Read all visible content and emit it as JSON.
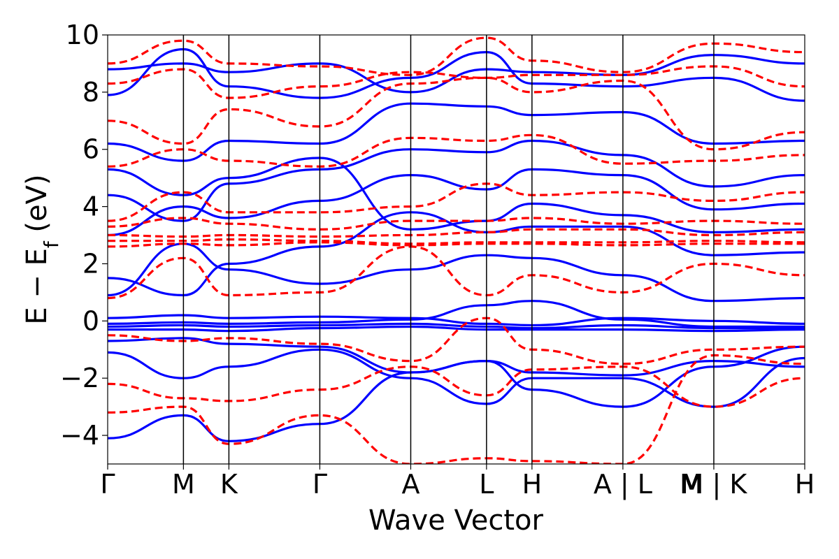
{
  "chart_data": {
    "type": "line",
    "xlabel": "Wave Vector",
    "ylabel": "E − E",
    "ylabel_sub": "f",
    "ylabel_unit": " (eV)",
    "ylim": [
      -5,
      10
    ],
    "yticks": [
      -4,
      -2,
      0,
      2,
      4,
      6,
      8,
      10
    ],
    "ytick_labels": [
      "−4",
      "−2",
      "0",
      "2",
      "4",
      "6",
      "8",
      "10"
    ],
    "kpath": [
      {
        "label": "Γ",
        "x": 0.0
      },
      {
        "label": "M",
        "x": 1.0
      },
      {
        "label": "K",
        "x": 1.6
      },
      {
        "label": "Γ",
        "x": 2.8
      },
      {
        "label": "A",
        "x": 4.0
      },
      {
        "label": "L",
        "x": 5.0
      },
      {
        "label": "H",
        "x": 5.6
      },
      {
        "label": "A | L",
        "x": 6.8
      },
      {
        "label": "M | K",
        "x": 8.0
      },
      {
        "label": "H",
        "x": 9.2
      }
    ],
    "extra_vlines": [],
    "label_M_between": {
      "label": "M",
      "x": 7.7
    },
    "xlim": [
      0,
      9.2
    ],
    "grid": false,
    "series": [
      {
        "style": "solid",
        "color": "#0000ff",
        "bands": [
          {
            "x": [
              0,
              1,
              1.6,
              2.8,
              4,
              5,
              5.6,
              6.8,
              8,
              9.2
            ],
            "y": [
              -0.1,
              -0.05,
              -0.1,
              -0.05,
              0.05,
              0.55,
              0.7,
              0.05,
              -0.2,
              -0.2
            ]
          },
          {
            "x": [
              0,
              1,
              1.6,
              2.8,
              4,
              5,
              5.6,
              6.8,
              8,
              9.2
            ],
            "y": [
              -0.2,
              -0.15,
              -0.2,
              -0.15,
              -0.1,
              -0.2,
              -0.25,
              -0.15,
              -0.25,
              -0.25
            ]
          },
          {
            "x": [
              0,
              1,
              1.6,
              2.8,
              4,
              5,
              5.6,
              6.8,
              8,
              9.2
            ],
            "y": [
              -0.3,
              -0.3,
              -0.35,
              -0.25,
              -0.2,
              -0.3,
              -0.3,
              -0.3,
              -0.35,
              -0.3
            ]
          },
          {
            "x": [
              0,
              1,
              1.6,
              2.8,
              4,
              5,
              5.6,
              6.8,
              8,
              9.2
            ],
            "y": [
              0.1,
              0.2,
              0.1,
              0.15,
              0.1,
              -0.1,
              -0.15,
              0.1,
              0.0,
              -0.1
            ]
          },
          {
            "x": [
              0,
              1,
              1.6,
              2.8,
              4,
              5,
              5.6,
              6.8,
              8,
              9.2
            ],
            "y": [
              -0.7,
              -0.6,
              -0.8,
              -0.9,
              -1.8,
              -1.4,
              -1.8,
              -1.9,
              -1.4,
              -1.6
            ]
          },
          {
            "x": [
              0,
              1,
              1.6,
              2.8,
              4,
              5,
              5.6,
              6.8,
              8,
              9.2
            ],
            "y": [
              -1.1,
              -2.0,
              -1.6,
              -1.0,
              -2.0,
              -2.9,
              -2.0,
              -2.0,
              -3.0,
              -1.3
            ]
          },
          {
            "x": [
              0,
              1,
              1.6,
              2.8,
              4,
              5,
              5.6,
              6.8,
              8,
              9.2
            ],
            "y": [
              -4.1,
              -3.3,
              -4.2,
              -3.6,
              -1.8,
              -1.4,
              -2.4,
              -3.0,
              -1.6,
              -0.9
            ]
          },
          {
            "x": [
              0,
              1,
              1.6,
              2.8,
              4,
              5,
              5.6,
              6.8,
              8,
              9.2
            ],
            "y": [
              0.9,
              2.7,
              1.8,
              1.3,
              1.8,
              2.3,
              2.2,
              1.6,
              0.7,
              0.8
            ]
          },
          {
            "x": [
              0,
              1,
              1.6,
              2.8,
              4,
              5,
              5.6,
              6.8,
              8,
              9.2
            ],
            "y": [
              1.5,
              0.9,
              2.0,
              2.6,
              3.8,
              3.1,
              3.3,
              3.3,
              2.3,
              2.4
            ]
          },
          {
            "x": [
              0,
              1,
              1.6,
              2.8,
              4,
              5,
              5.6,
              6.8,
              8,
              9.2
            ],
            "y": [
              3.0,
              4.0,
              3.6,
              4.2,
              5.1,
              4.6,
              5.3,
              5.1,
              3.9,
              4.1
            ]
          },
          {
            "x": [
              0,
              1,
              1.6,
              2.8,
              4,
              5,
              5.6,
              6.8,
              8,
              9.2
            ],
            "y": [
              4.4,
              3.5,
              4.8,
              5.3,
              6.0,
              5.9,
              6.3,
              5.8,
              4.7,
              5.1
            ]
          },
          {
            "x": [
              0,
              1,
              1.6,
              2.8,
              4,
              5,
              5.6,
              6.8,
              8,
              9.2
            ],
            "y": [
              6.2,
              5.6,
              6.3,
              6.2,
              7.6,
              7.5,
              7.2,
              7.3,
              6.2,
              6.3
            ]
          },
          {
            "x": [
              0,
              1,
              1.6,
              2.8,
              4,
              5,
              5.6,
              6.8,
              8,
              9.2
            ],
            "y": [
              7.9,
              9.5,
              8.2,
              7.8,
              8.5,
              9.4,
              8.3,
              8.2,
              8.5,
              7.7
            ]
          },
          {
            "x": [
              0,
              1,
              1.6,
              2.8,
              4,
              5,
              5.6,
              6.8,
              8,
              9.2
            ],
            "y": [
              8.8,
              9.0,
              8.7,
              9.0,
              8.0,
              8.8,
              8.7,
              8.6,
              9.3,
              9.0
            ]
          },
          {
            "x": [
              0,
              1,
              1.6,
              2.8,
              4,
              5,
              5.6,
              6.8,
              8,
              9.2
            ],
            "y": [
              5.3,
              4.4,
              5.0,
              5.7,
              3.2,
              3.5,
              4.1,
              3.7,
              3.1,
              3.2
            ]
          }
        ]
      },
      {
        "style": "dashed",
        "color": "#ff0000",
        "bands": [
          {
            "x": [
              0,
              1,
              1.6,
              2.8,
              4,
              5,
              5.6,
              6.8,
              8,
              9.2
            ],
            "y": [
              2.6,
              2.7,
              2.65,
              2.75,
              2.65,
              2.7,
              2.7,
              2.65,
              2.7,
              2.7
            ]
          },
          {
            "x": [
              0,
              1,
              1.6,
              2.8,
              4,
              5,
              5.6,
              6.8,
              8,
              9.2
            ],
            "y": [
              2.8,
              2.8,
              2.85,
              2.8,
              2.7,
              2.75,
              2.75,
              2.75,
              2.8,
              2.75
            ]
          },
          {
            "x": [
              0,
              1,
              1.6,
              2.8,
              4,
              5,
              5.6,
              6.8,
              8,
              9.2
            ],
            "y": [
              3.0,
              2.95,
              3.0,
              2.95,
              3.0,
              3.1,
              3.2,
              3.2,
              3.0,
              3.1
            ]
          },
          {
            "x": [
              0,
              1,
              1.6,
              2.8,
              4,
              5,
              5.6,
              6.8,
              8,
              9.2
            ],
            "y": [
              3.3,
              3.6,
              3.4,
              3.2,
              3.5,
              3.5,
              3.6,
              3.4,
              3.5,
              3.4
            ]
          },
          {
            "x": [
              0,
              1,
              1.6,
              2.8,
              4,
              5,
              5.6,
              6.8,
              8,
              9.2
            ],
            "y": [
              -0.5,
              -0.7,
              -0.6,
              -0.8,
              -1.4,
              0.1,
              -1.0,
              -1.5,
              -1.0,
              -0.9
            ]
          },
          {
            "x": [
              0,
              1,
              1.6,
              2.8,
              4,
              5,
              5.6,
              6.8,
              8,
              9.2
            ],
            "y": [
              -2.2,
              -2.7,
              -2.8,
              -2.4,
              -1.6,
              -2.6,
              -1.7,
              -1.6,
              -3.0,
              -2.0
            ]
          },
          {
            "x": [
              0,
              1,
              1.6,
              2.8,
              4,
              5,
              5.6,
              6.8,
              8,
              9.2
            ],
            "y": [
              -3.2,
              -3.0,
              -4.3,
              -3.3,
              -5.0,
              -4.8,
              -4.9,
              -5.0,
              -1.2,
              -1.5
            ]
          },
          {
            "x": [
              0,
              1,
              1.6,
              2.8,
              4,
              5,
              5.6,
              6.8,
              8,
              9.2
            ],
            "y": [
              0.8,
              2.2,
              0.9,
              1.0,
              2.6,
              0.9,
              1.6,
              1.0,
              2.0,
              1.6
            ]
          },
          {
            "x": [
              0,
              1,
              1.6,
              2.8,
              4,
              5,
              5.6,
              6.8,
              8,
              9.2
            ],
            "y": [
              3.5,
              4.5,
              3.8,
              3.8,
              4.0,
              4.8,
              4.4,
              4.5,
              4.2,
              4.5
            ]
          },
          {
            "x": [
              0,
              1,
              1.6,
              2.8,
              4,
              5,
              5.6,
              6.8,
              8,
              9.2
            ],
            "y": [
              5.4,
              6.0,
              5.6,
              5.4,
              6.4,
              6.3,
              6.5,
              5.5,
              5.6,
              5.8
            ]
          },
          {
            "x": [
              0,
              1,
              1.6,
              2.8,
              4,
              5,
              5.6,
              6.8,
              8,
              9.2
            ],
            "y": [
              7.0,
              6.2,
              7.4,
              6.8,
              8.3,
              8.5,
              8.0,
              8.4,
              6.0,
              6.6
            ]
          },
          {
            "x": [
              0,
              1,
              1.6,
              2.8,
              4,
              5,
              5.6,
              6.8,
              8,
              9.2
            ],
            "y": [
              9.0,
              9.8,
              9.0,
              8.9,
              8.6,
              9.9,
              9.1,
              8.7,
              9.7,
              9.4
            ]
          },
          {
            "x": [
              0,
              1,
              1.6,
              2.8,
              4,
              5,
              5.6,
              6.8,
              8,
              9.2
            ],
            "y": [
              8.3,
              8.8,
              7.8,
              8.2,
              8.7,
              8.5,
              8.6,
              8.6,
              8.9,
              8.2
            ]
          }
        ]
      }
    ]
  }
}
